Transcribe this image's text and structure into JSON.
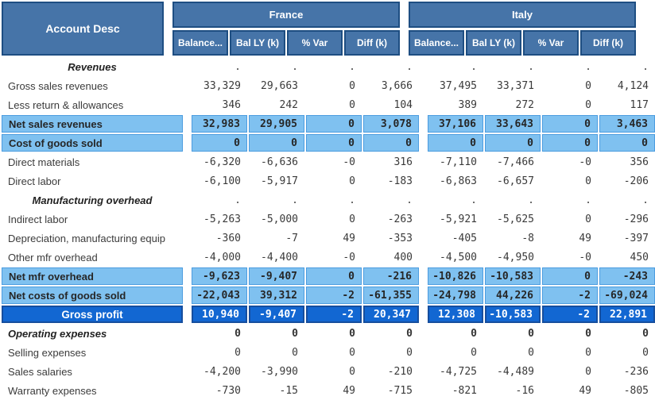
{
  "table": {
    "row_header": "Account Desc",
    "groups": [
      {
        "label": "France",
        "columns": [
          "Balance...",
          "Bal LY (k)",
          "% Var",
          "Diff (k)"
        ]
      },
      {
        "label": "Italy",
        "columns": [
          "Balance...",
          "Bal LY (k)",
          "% Var",
          "Diff (k)"
        ]
      }
    ],
    "null_symbol": ".",
    "rows": [
      {
        "label": "Revenues",
        "type": "section",
        "france": [
          ".",
          ".",
          ".",
          "."
        ],
        "italy": [
          ".",
          ".",
          ".",
          "."
        ]
      },
      {
        "label": "Gross sales revenues",
        "type": "normal",
        "france": [
          "33,329",
          "29,663",
          "0",
          "3,666"
        ],
        "italy": [
          "37,495",
          "33,371",
          "0",
          "4,124"
        ]
      },
      {
        "label": "Less return & allowances",
        "type": "normal",
        "france": [
          "346",
          "242",
          "0",
          "104"
        ],
        "italy": [
          "389",
          "272",
          "0",
          "117"
        ]
      },
      {
        "label": "Net sales revenues",
        "type": "highlight",
        "france": [
          "32,983",
          "29,905",
          "0",
          "3,078"
        ],
        "italy": [
          "37,106",
          "33,643",
          "0",
          "3,463"
        ]
      },
      {
        "label": "Cost of goods sold",
        "type": "highlight",
        "france": [
          "0",
          "0",
          "0",
          "0"
        ],
        "italy": [
          "0",
          "0",
          "0",
          "0"
        ]
      },
      {
        "label": "Direct materials",
        "type": "normal",
        "france": [
          "-6,320",
          "-6,636",
          "-0",
          "316"
        ],
        "italy": [
          "-7,110",
          "-7,466",
          "-0",
          "356"
        ]
      },
      {
        "label": "Direct labor",
        "type": "normal",
        "france": [
          "-6,100",
          "-5,917",
          "0",
          "-183"
        ],
        "italy": [
          "-6,863",
          "-6,657",
          "0",
          "-206"
        ]
      },
      {
        "label": "Manufacturing overhead",
        "type": "section",
        "france": [
          ".",
          ".",
          ".",
          "."
        ],
        "italy": [
          ".",
          ".",
          ".",
          "."
        ]
      },
      {
        "label": "Indirect labor",
        "type": "normal",
        "france": [
          "-5,263",
          "-5,000",
          "0",
          "-263"
        ],
        "italy": [
          "-5,921",
          "-5,625",
          "0",
          "-296"
        ]
      },
      {
        "label": "Depreciation, manufacturing equip",
        "type": "normal",
        "france": [
          "-360",
          "-7",
          "49",
          "-353"
        ],
        "italy": [
          "-405",
          "-8",
          "49",
          "-397"
        ]
      },
      {
        "label": "Other mfr overhead",
        "type": "normal",
        "france": [
          "-4,000",
          "-4,400",
          "-0",
          "400"
        ],
        "italy": [
          "-4,500",
          "-4,950",
          "-0",
          "450"
        ]
      },
      {
        "label": "Net mfr overhead",
        "type": "highlight",
        "france": [
          "-9,623",
          "-9,407",
          "0",
          "-216"
        ],
        "italy": [
          "-10,826",
          "-10,583",
          "0",
          "-243"
        ]
      },
      {
        "label": "Net costs of goods sold",
        "type": "highlight",
        "france": [
          "-22,043",
          "39,312",
          "-2",
          "-61,355"
        ],
        "italy": [
          "-24,798",
          "44,226",
          "-2",
          "-69,024"
        ]
      },
      {
        "label": "Gross profit",
        "type": "total",
        "france": [
          "10,940",
          "-9,407",
          "-2",
          "20,347"
        ],
        "italy": [
          "12,308",
          "-10,583",
          "-2",
          "22,891"
        ]
      },
      {
        "label": "Operating expenses",
        "type": "sectionleft",
        "france": [
          "0",
          "0",
          "0",
          "0"
        ],
        "italy": [
          "0",
          "0",
          "0",
          "0"
        ]
      },
      {
        "label": "Selling expenses",
        "type": "normal",
        "france": [
          "0",
          "0",
          "0",
          "0"
        ],
        "italy": [
          "0",
          "0",
          "0",
          "0"
        ]
      },
      {
        "label": "Sales salaries",
        "type": "normal",
        "france": [
          "-4,200",
          "-3,990",
          "0",
          "-210"
        ],
        "italy": [
          "-4,725",
          "-4,489",
          "0",
          "-236"
        ]
      },
      {
        "label": "Warranty expenses",
        "type": "normal",
        "france": [
          "-730",
          "-15",
          "49",
          "-715"
        ],
        "italy": [
          "-821",
          "-16",
          "49",
          "-805"
        ]
      }
    ]
  },
  "colors": {
    "header_fill": "#4674A8",
    "header_border": "#1E4E82",
    "highlight_fill": "#7FC1F0",
    "highlight_border": "#4C9CDF",
    "total_fill": "#1267D2",
    "total_border": "#164E9E",
    "header_text": "#ffffff",
    "body_text": "#3B3B3B"
  }
}
